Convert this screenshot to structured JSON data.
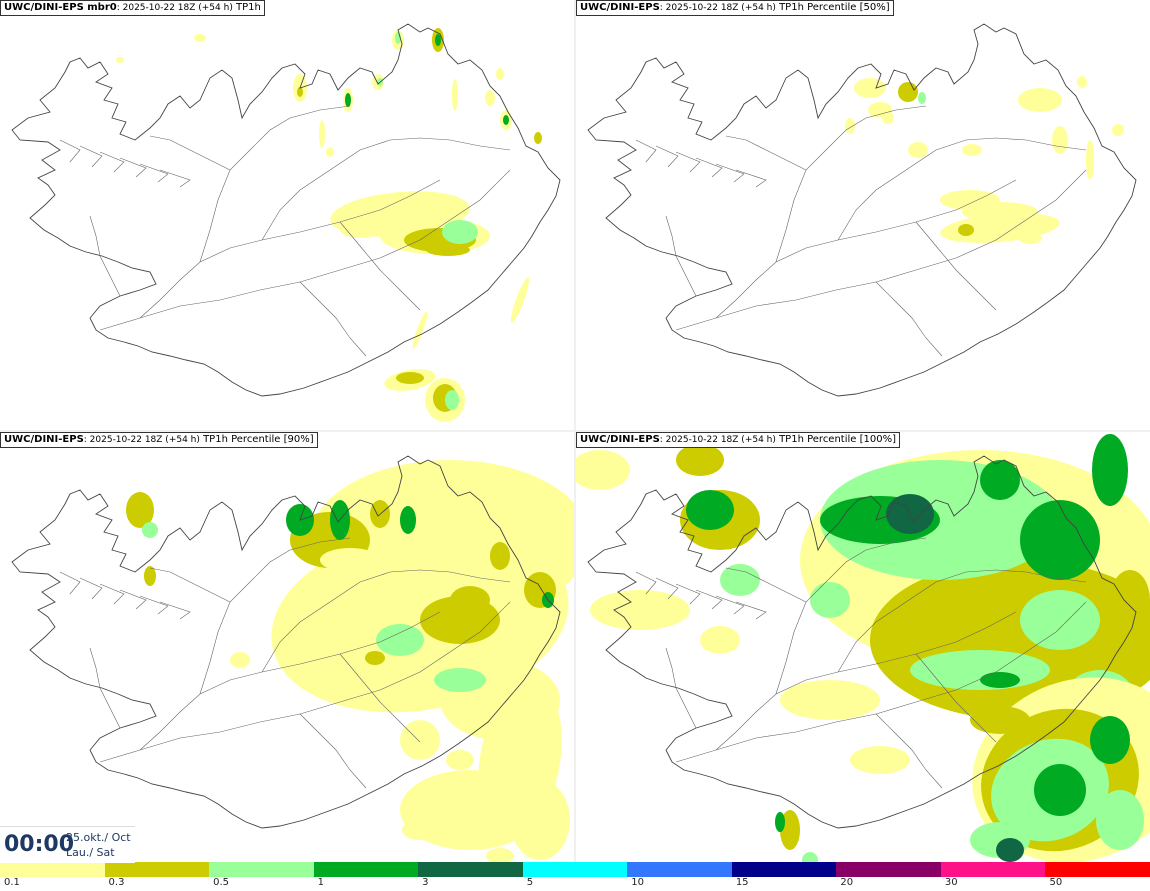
{
  "panels": [
    {
      "title_bold": "UWC/DINI-EPS mbr0",
      "title_rest": ": 2025-10-22 18Z (+54 h)",
      "title_var": "TP1h"
    },
    {
      "title_bold": "UWC/DINI-EPS",
      "title_rest": ": 2025-10-22 18Z (+54 h)",
      "title_var": "TP1h Percentile [50%]"
    },
    {
      "title_bold": "UWC/DINI-EPS",
      "title_rest": ": 2025-10-22 18Z (+54 h)",
      "title_var": "TP1h Percentile [90%]"
    },
    {
      "title_bold": "UWC/DINI-EPS",
      "title_rest": ": 2025-10-22 18Z (+54 h)",
      "title_var": "TP1h Percentile [100%]"
    }
  ],
  "valid_time": {
    "hour": "00:00",
    "date": "25.okt./ Oct",
    "weekday": "Lau./ Sat"
  },
  "legend": {
    "ticks": [
      "0.1",
      "0.3",
      "0.5",
      "1",
      "3",
      "5",
      "10",
      "15",
      "20",
      "30",
      "50"
    ],
    "colors": [
      "#ffff99",
      "#cccc00",
      "#99ff99",
      "#00aa22",
      "#116644",
      "#00ffff",
      "#3377ff",
      "#000088",
      "#880066",
      "#ff1188",
      "#ff0000"
    ]
  }
}
